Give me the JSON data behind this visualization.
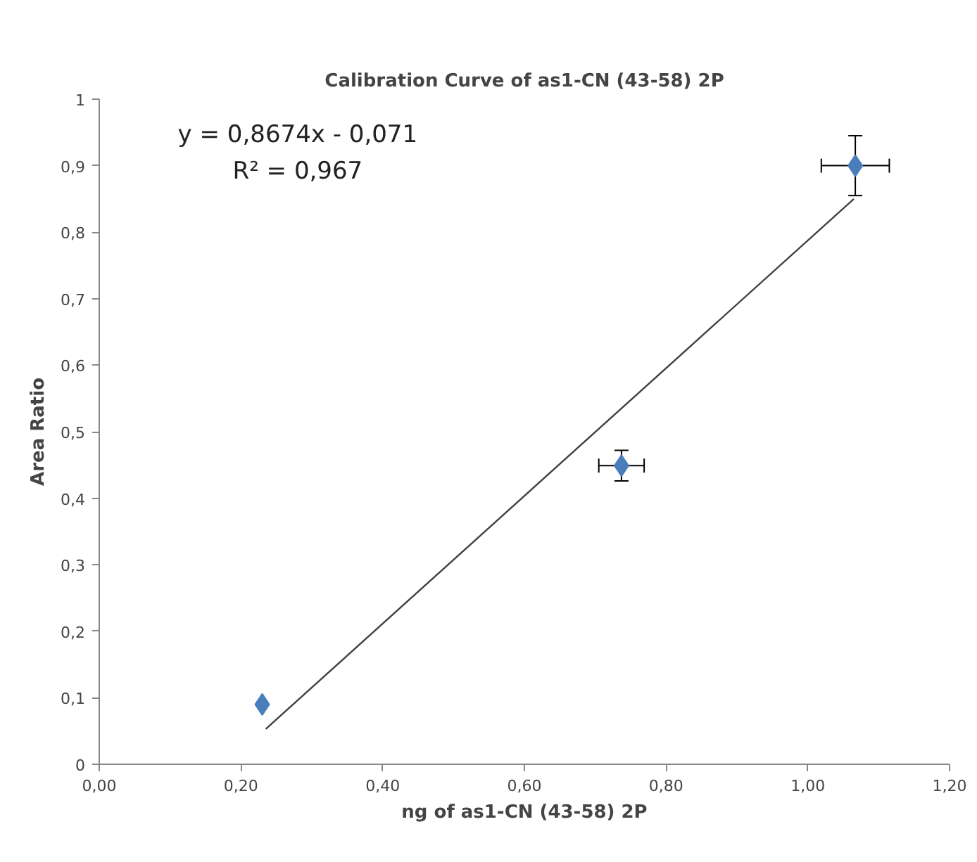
{
  "chart_data": {
    "type": "scatter",
    "title": "Calibration Curve of as1-CN (43-58) 2P",
    "xlabel": "ng of as1-CN (43-58) 2P",
    "ylabel": "Area Ratio",
    "annotations": [
      "y = 0,8674x - 0,071",
      "R² = 0,967"
    ],
    "series": [
      {
        "color": "#4a7ebb",
        "x": [
          0.23,
          0.737,
          1.067
        ],
        "values": [
          0.09,
          0.449,
          0.9
        ],
        "errors": [
          null,
          0.023,
          0.045
        ],
        "xerrors": [
          null,
          0.032,
          0.048
        ],
        "marker": "diamond"
      },
      {
        "type": "line",
        "color": "#404040",
        "x": [
          0.235,
          1.065
        ],
        "values": [
          0.053,
          0.85
        ]
      }
    ],
    "xlim": [
      0,
      1.2
    ],
    "ylim": [
      0,
      1
    ],
    "xticks": [
      {
        "value": 0,
        "label": "0,00"
      },
      {
        "value": 0.2,
        "label": "0,20"
      },
      {
        "value": 0.4,
        "label": "0,40"
      },
      {
        "value": 0.6,
        "label": "0,60"
      },
      {
        "value": 0.8,
        "label": "0,80"
      },
      {
        "value": 1.0,
        "label": "1,00"
      },
      {
        "value": 1.2,
        "label": "1,20"
      }
    ],
    "yticks": [
      0,
      {
        "value": 0.1,
        "label": "0,1"
      },
      {
        "value": 0.2,
        "label": "0,2"
      },
      {
        "value": 0.3,
        "label": "0,3"
      },
      {
        "value": 0.4,
        "label": "0,4"
      },
      {
        "value": 0.5,
        "label": "0,5"
      },
      {
        "value": 0.6,
        "label": "0,6"
      },
      {
        "value": 0.7,
        "label": "0,7"
      },
      {
        "value": 0.8,
        "label": "0,8"
      },
      {
        "value": 0.9,
        "label": "0,9"
      },
      1
    ],
    "grid": false
  }
}
